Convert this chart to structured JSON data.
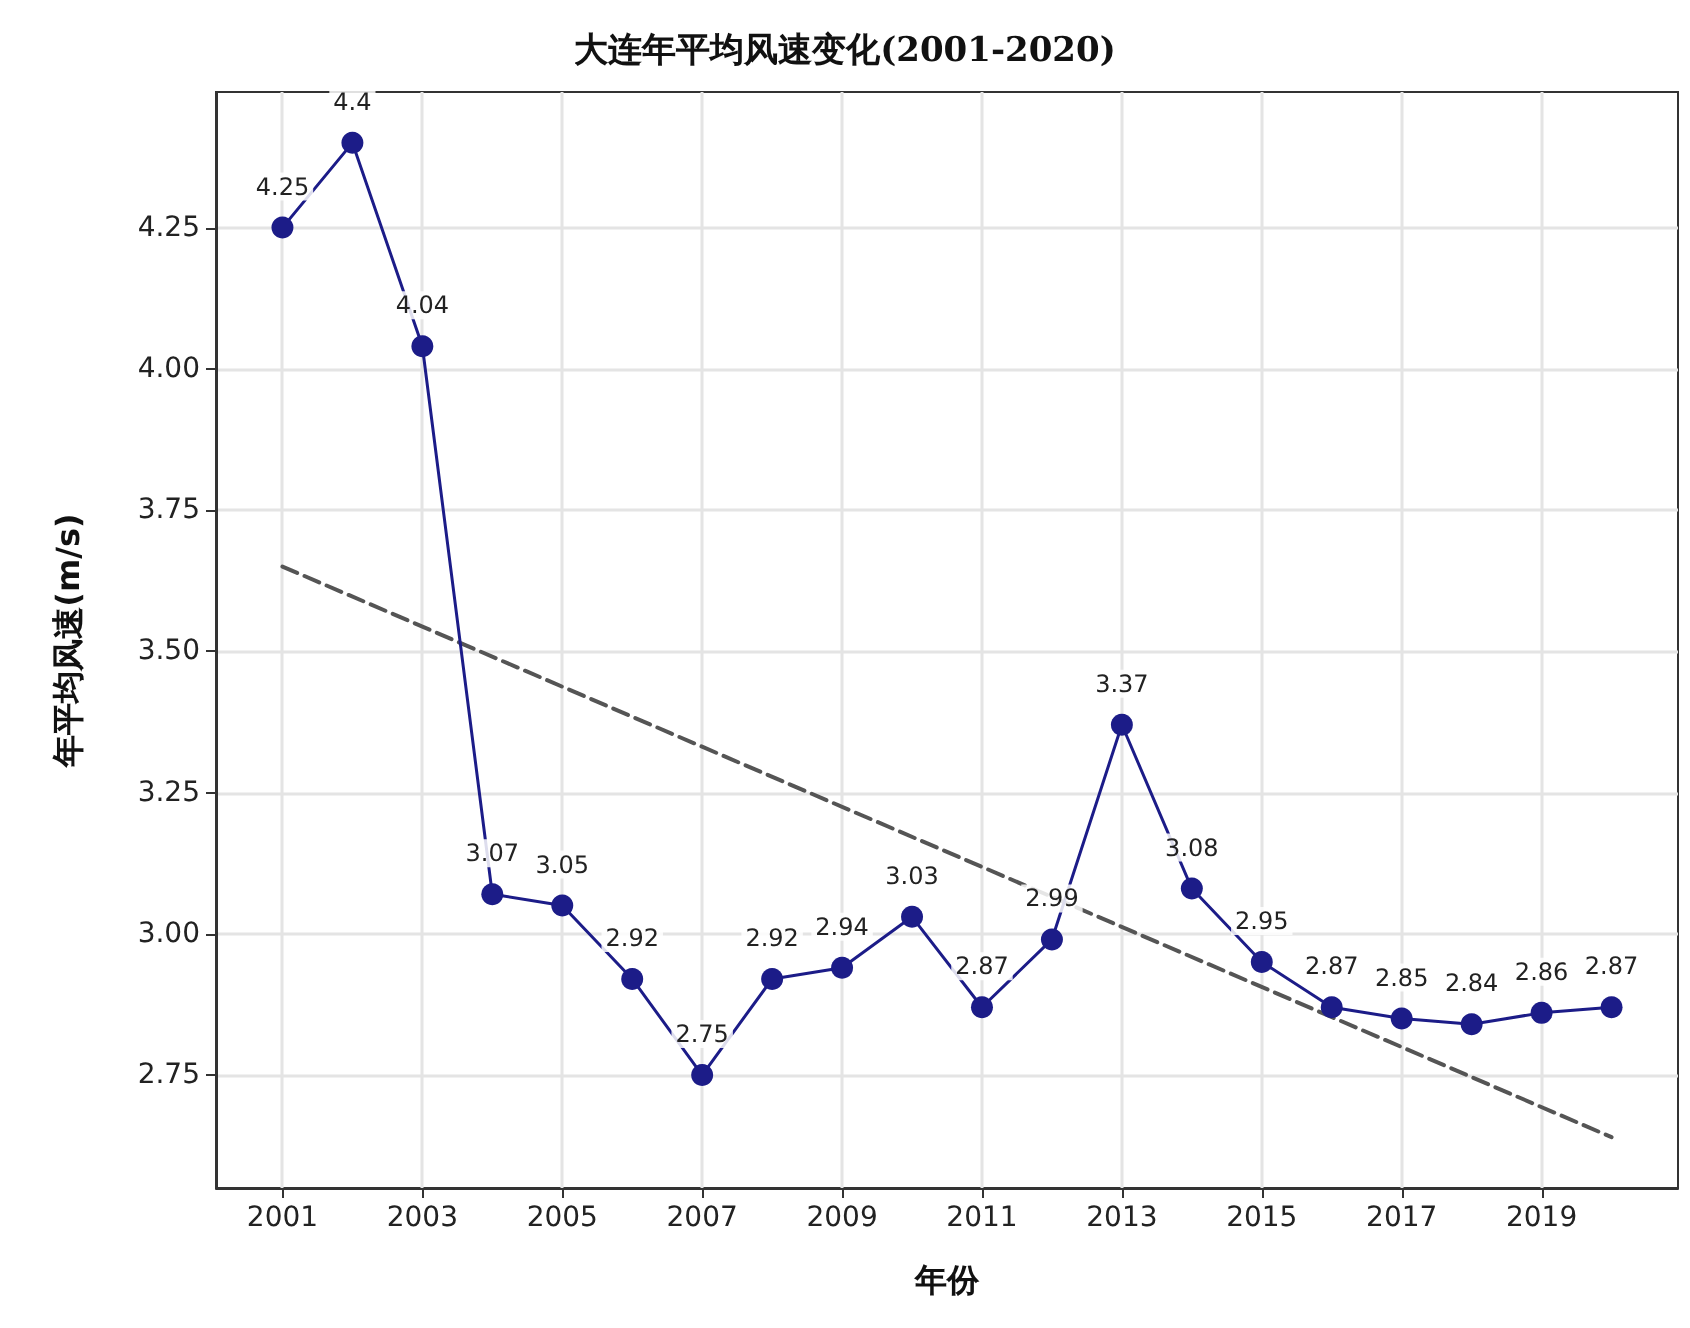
{
  "chart_data": {
    "type": "line",
    "title": "大连年平均风速变化(2001-2020)",
    "xlabel": "年份",
    "ylabel": "年平均风速(m/s)",
    "x": [
      2001,
      2002,
      2003,
      2004,
      2005,
      2006,
      2007,
      2008,
      2009,
      2010,
      2011,
      2012,
      2013,
      2014,
      2015,
      2016,
      2017,
      2018,
      2019,
      2020
    ],
    "series": [
      {
        "color": "#1c1c88",
        "values": [
          4.25,
          4.4,
          4.04,
          3.07,
          3.05,
          2.92,
          2.75,
          2.92,
          2.94,
          3.03,
          2.87,
          2.99,
          3.37,
          3.08,
          2.95,
          2.87,
          2.85,
          2.84,
          2.86,
          2.87
        ],
        "value_labels": [
          "4.25",
          "4.4",
          "4.04",
          "3.07",
          "3.05",
          "2.92",
          "2.75",
          "2.92",
          "2.94",
          "3.03",
          "2.87",
          "2.99",
          "3.37",
          "3.08",
          "2.95",
          "2.87",
          "2.85",
          "2.84",
          "2.86",
          "2.87"
        ],
        "marker": "circle",
        "line_style": "solid"
      },
      {
        "color": "#555555",
        "x": [
          2001,
          2020
        ],
        "values": [
          3.65,
          2.64
        ],
        "marker": "none",
        "line_style": "dashed"
      }
    ],
    "xlim": [
      2000.05,
      2020.95
    ],
    "xticks": [
      2001,
      2003,
      2005,
      2007,
      2009,
      2011,
      2013,
      2015,
      2017,
      2019
    ],
    "ylim": [
      2.55,
      4.49
    ],
    "yticks": [
      2.75,
      {
        "value": 3.0,
        "label": "3.00"
      },
      3.25,
      {
        "value": 3.5,
        "label": "3.50"
      },
      3.75,
      {
        "value": 4.0,
        "label": "4.00"
      },
      4.25
    ],
    "grid": true
  }
}
